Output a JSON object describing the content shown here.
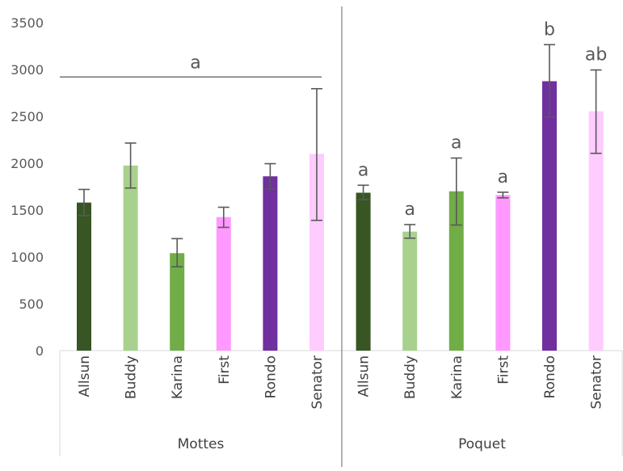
{
  "chart_data": {
    "type": "bar",
    "y_ticks": [
      "0",
      "500",
      "1000",
      "1500",
      "2000",
      "2500",
      "3000",
      "3500"
    ],
    "ylim": [
      0,
      3500
    ],
    "grid": false,
    "legend": "none",
    "groups": [
      {
        "name": "Mottes",
        "bracket_label": "a",
        "bracket_value": 2920,
        "bars": [
          {
            "category": "Allsun",
            "value": 1580,
            "err_low": 1440,
            "err_high": 1720,
            "color": "#375623"
          },
          {
            "category": "Buddy",
            "value": 1975,
            "err_low": 1735,
            "err_high": 2215,
            "color": "#a9d18e"
          },
          {
            "category": "Karina",
            "value": 1040,
            "err_low": 895,
            "err_high": 1195,
            "color": "#70ad47"
          },
          {
            "category": "First",
            "value": 1425,
            "err_low": 1315,
            "err_high": 1530,
            "color": "#ff99ff"
          },
          {
            "category": "Rondo",
            "value": 1860,
            "err_low": 1725,
            "err_high": 1995,
            "color": "#7030a0"
          },
          {
            "category": "Senator",
            "value": 2100,
            "err_low": 1390,
            "err_high": 2795,
            "color": "#ffccff"
          }
        ]
      },
      {
        "name": "Poquet",
        "bars": [
          {
            "category": "Allsun",
            "value": 1685,
            "err_low": 1610,
            "err_high": 1765,
            "color": "#375623",
            "sig": "a"
          },
          {
            "category": "Buddy",
            "value": 1270,
            "err_low": 1200,
            "err_high": 1345,
            "color": "#a9d18e",
            "sig": "a"
          },
          {
            "category": "Karina",
            "value": 1700,
            "err_low": 1340,
            "err_high": 2055,
            "color": "#70ad47",
            "sig": "a"
          },
          {
            "category": "First",
            "value": 1660,
            "err_low": 1630,
            "err_high": 1690,
            "color": "#ff99ff",
            "sig": "a"
          },
          {
            "category": "Rondo",
            "value": 2875,
            "err_low": 2490,
            "err_high": 3265,
            "color": "#7030a0",
            "sig": "b"
          },
          {
            "category": "Senator",
            "value": 2555,
            "err_low": 2105,
            "err_high": 2995,
            "color": "#ffccff",
            "sig": "ab"
          }
        ]
      }
    ]
  }
}
